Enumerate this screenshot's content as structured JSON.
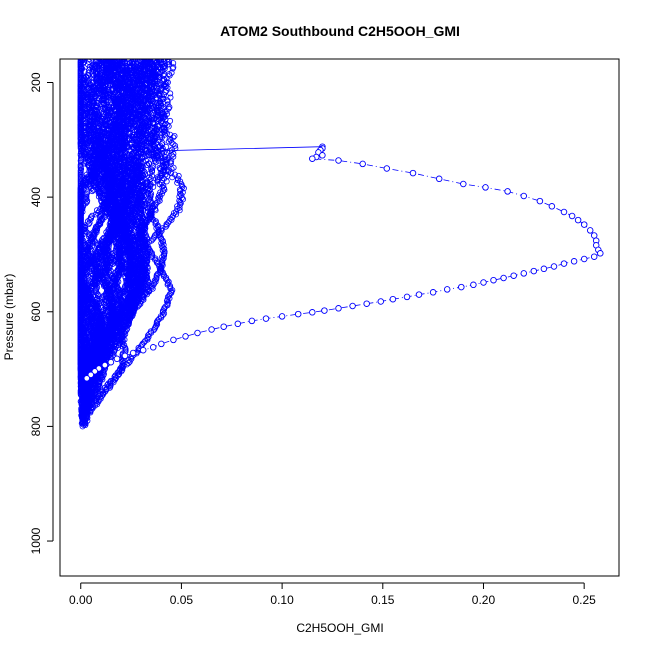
{
  "chart_data": {
    "type": "scatter",
    "title": "ATOM2 Southbound C2H5OOH_GMI",
    "xlabel": "C2H5OOH_GMI",
    "ylabel": "Pressure (mbar)",
    "xlim": [
      -0.0103,
      0.2673
    ],
    "ylim": [
      1061,
      159
    ],
    "y_reversed": true,
    "x_ticks": [
      0.0,
      0.05,
      0.1,
      0.15,
      0.2,
      0.25
    ],
    "x_tick_labels": [
      "0.00",
      "0.05",
      "0.10",
      "0.15",
      "0.20",
      "0.25"
    ],
    "y_ticks": [
      200,
      400,
      600,
      800,
      1000
    ],
    "y_tick_labels": [
      "200",
      "400",
      "600",
      "800",
      "1000"
    ],
    "grid": false,
    "legend": "none",
    "color": "#0000ff",
    "marker": "open-circle",
    "series": [
      {
        "style": "dash-dot",
        "points": [
          [
            0.12,
            312
          ],
          [
            0.12,
            315
          ],
          [
            0.119,
            318
          ],
          [
            0.118,
            322
          ],
          [
            0.12,
            327
          ],
          [
            0.117,
            330
          ],
          [
            0.115,
            333
          ],
          [
            0.128,
            336
          ],
          [
            0.14,
            342
          ],
          [
            0.152,
            350
          ],
          [
            0.165,
            358
          ],
          [
            0.178,
            368
          ],
          [
            0.19,
            377
          ],
          [
            0.201,
            383
          ],
          [
            0.212,
            390
          ],
          [
            0.22,
            398
          ],
          [
            0.228,
            407
          ],
          [
            0.234,
            416
          ],
          [
            0.24,
            426
          ],
          [
            0.244,
            433
          ],
          [
            0.247,
            440
          ],
          [
            0.25,
            448
          ],
          [
            0.253,
            458
          ],
          [
            0.255,
            467
          ],
          [
            0.256,
            476
          ],
          [
            0.256,
            484
          ],
          [
            0.257,
            492
          ],
          [
            0.258,
            498
          ],
          [
            0.255,
            504
          ],
          [
            0.25,
            508
          ],
          [
            0.245,
            512
          ],
          [
            0.24,
            516
          ],
          [
            0.235,
            521
          ],
          [
            0.23,
            525
          ],
          [
            0.225,
            529
          ],
          [
            0.22,
            533
          ],
          [
            0.215,
            537
          ],
          [
            0.21,
            541
          ],
          [
            0.205,
            545
          ],
          [
            0.2,
            549
          ],
          [
            0.195,
            553
          ],
          [
            0.189,
            557
          ],
          [
            0.182,
            561
          ],
          [
            0.175,
            566
          ],
          [
            0.168,
            570
          ],
          [
            0.162,
            574
          ],
          [
            0.155,
            578
          ],
          [
            0.149,
            582
          ],
          [
            0.142,
            586
          ],
          [
            0.135,
            590
          ],
          [
            0.128,
            594
          ],
          [
            0.121,
            598
          ],
          [
            0.115,
            601
          ],
          [
            0.108,
            604
          ],
          [
            0.1,
            608
          ],
          [
            0.092,
            612
          ],
          [
            0.085,
            616
          ],
          [
            0.078,
            621
          ],
          [
            0.071,
            626
          ],
          [
            0.065,
            631
          ],
          [
            0.058,
            637
          ],
          [
            0.052,
            643
          ],
          [
            0.046,
            649
          ],
          [
            0.04,
            656
          ],
          [
            0.036,
            662
          ],
          [
            0.031,
            667
          ],
          [
            0.026,
            672
          ],
          [
            0.022,
            677
          ],
          [
            0.018,
            682
          ],
          [
            0.015,
            688
          ],
          [
            0.012,
            693
          ],
          [
            0.009,
            699
          ],
          [
            0.007,
            704
          ],
          [
            0.005,
            710
          ],
          [
            0.003,
            716
          ]
        ]
      },
      {
        "style": "solid",
        "points": [
          [
            0.12,
            312
          ],
          [
            0.03,
            320
          ]
        ]
      }
    ],
    "dense_profiles": {
      "description": "Many overlapping vertical profiles of open circles between about 0 and 0.058 from 159 to 800 mbar",
      "x_range": [
        0.0,
        0.058
      ],
      "pressure_range": [
        159,
        802
      ]
    }
  }
}
